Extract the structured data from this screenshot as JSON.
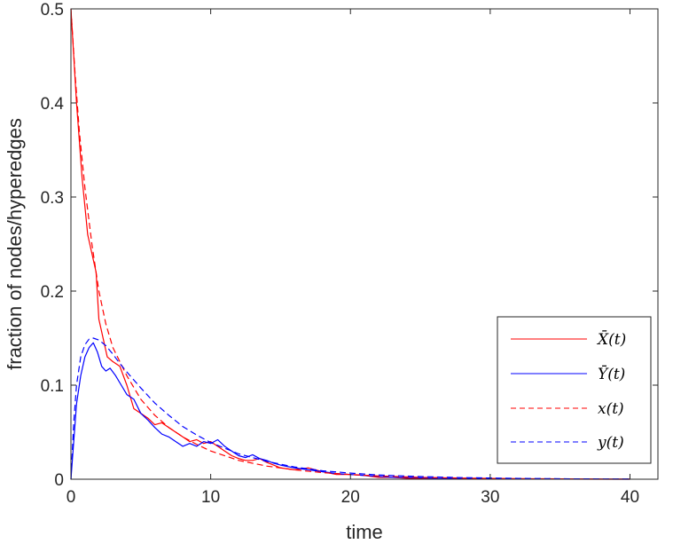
{
  "chart_data": {
    "type": "line",
    "title": "",
    "xlabel": "time",
    "ylabel": "fraction of nodes/hyperedges",
    "xlim": [
      0,
      42
    ],
    "ylim": [
      0,
      0.5
    ],
    "xticks": [
      0,
      10,
      20,
      30,
      40
    ],
    "yticks": [
      0,
      0.1,
      0.2,
      0.3,
      0.4,
      0.5
    ],
    "xtick_labels": [
      "0",
      "10",
      "20",
      "30",
      "40"
    ],
    "ytick_labels": [
      "0",
      "0.1",
      "0.2",
      "0.3",
      "0.4",
      "0.5"
    ],
    "grid": false,
    "legend_position": "bottom-right",
    "series": [
      {
        "name": "X̄(t)",
        "color": "#ff0000",
        "dash": "solid",
        "x": [
          0,
          0.2,
          0.4,
          0.6,
          0.8,
          1.0,
          1.2,
          1.5,
          1.8,
          2.0,
          2.3,
          2.6,
          3.0,
          3.5,
          4.0,
          4.5,
          5.0,
          5.5,
          6.0,
          6.5,
          7.0,
          7.5,
          8.0,
          8.5,
          9.0,
          9.5,
          10,
          10.5,
          11,
          11.5,
          12,
          12.5,
          13,
          13.5,
          14,
          14.5,
          15,
          16,
          17,
          18,
          19,
          20,
          21,
          22,
          23,
          24,
          25,
          26,
          28,
          30,
          32,
          35,
          38,
          40
        ],
        "y": [
          0.5,
          0.45,
          0.4,
          0.36,
          0.32,
          0.29,
          0.26,
          0.24,
          0.22,
          0.17,
          0.15,
          0.13,
          0.125,
          0.12,
          0.1,
          0.075,
          0.07,
          0.065,
          0.058,
          0.06,
          0.055,
          0.05,
          0.045,
          0.04,
          0.042,
          0.038,
          0.04,
          0.035,
          0.03,
          0.025,
          0.022,
          0.02,
          0.02,
          0.022,
          0.018,
          0.015,
          0.012,
          0.01,
          0.012,
          0.008,
          0.005,
          0.005,
          0.004,
          0.002,
          0.002,
          0.001,
          0.001,
          0.001,
          0.0005,
          0.0003,
          0.0002,
          0.0001,
          0,
          0
        ]
      },
      {
        "name": "Ȳ(t)",
        "color": "#0000ff",
        "dash": "solid",
        "x": [
          0,
          0.2,
          0.4,
          0.7,
          1.0,
          1.3,
          1.6,
          1.9,
          2.2,
          2.5,
          2.8,
          3.2,
          3.6,
          4.0,
          4.5,
          5.0,
          5.5,
          6.0,
          6.5,
          7.0,
          7.5,
          8.0,
          8.5,
          9.0,
          9.5,
          10,
          10.5,
          11,
          11.5,
          12,
          12.5,
          13,
          13.5,
          14,
          14.5,
          15,
          16,
          17,
          18,
          19,
          20,
          21,
          22,
          23,
          24,
          25,
          26,
          28,
          30,
          33,
          36,
          40
        ],
        "y": [
          0,
          0.04,
          0.08,
          0.11,
          0.13,
          0.14,
          0.145,
          0.135,
          0.12,
          0.115,
          0.118,
          0.11,
          0.1,
          0.09,
          0.085,
          0.07,
          0.063,
          0.055,
          0.048,
          0.045,
          0.04,
          0.035,
          0.038,
          0.035,
          0.04,
          0.038,
          0.042,
          0.035,
          0.03,
          0.025,
          0.023,
          0.026,
          0.022,
          0.02,
          0.017,
          0.015,
          0.012,
          0.01,
          0.008,
          0.006,
          0.005,
          0.004,
          0.003,
          0.002,
          0.002,
          0.0015,
          0.001,
          0.0007,
          0.0005,
          0.0003,
          0.0002,
          0
        ]
      },
      {
        "name": "x(t)",
        "color": "#ff0000",
        "dash": "dashed",
        "x": [
          0,
          0.3,
          0.6,
          1.0,
          1.5,
          2.0,
          2.5,
          3.0,
          4.0,
          5.0,
          6.0,
          7.0,
          8.0,
          9.0,
          10,
          12,
          14,
          16,
          18,
          20,
          22,
          25,
          28,
          32,
          36,
          40
        ],
        "y": [
          0.5,
          0.43,
          0.37,
          0.31,
          0.25,
          0.2,
          0.165,
          0.14,
          0.11,
          0.085,
          0.068,
          0.055,
          0.045,
          0.037,
          0.03,
          0.02,
          0.014,
          0.01,
          0.007,
          0.005,
          0.0035,
          0.002,
          0.0012,
          0.0006,
          0.0003,
          0.0001
        ]
      },
      {
        "name": "y(t)",
        "color": "#0000ff",
        "dash": "dashed",
        "x": [
          0,
          0.2,
          0.4,
          0.7,
          1.0,
          1.3,
          1.6,
          2.0,
          2.5,
          3.0,
          3.5,
          4.0,
          5.0,
          6.0,
          7.0,
          8.0,
          9.0,
          10,
          12,
          14,
          16,
          18,
          20,
          22,
          25,
          28,
          32,
          36,
          40
        ],
        "y": [
          0,
          0.06,
          0.1,
          0.13,
          0.143,
          0.149,
          0.15,
          0.148,
          0.142,
          0.133,
          0.123,
          0.114,
          0.097,
          0.081,
          0.068,
          0.056,
          0.047,
          0.039,
          0.027,
          0.019,
          0.013,
          0.009,
          0.0065,
          0.0045,
          0.0028,
          0.0017,
          0.0009,
          0.0004,
          0.0002
        ]
      }
    ]
  }
}
